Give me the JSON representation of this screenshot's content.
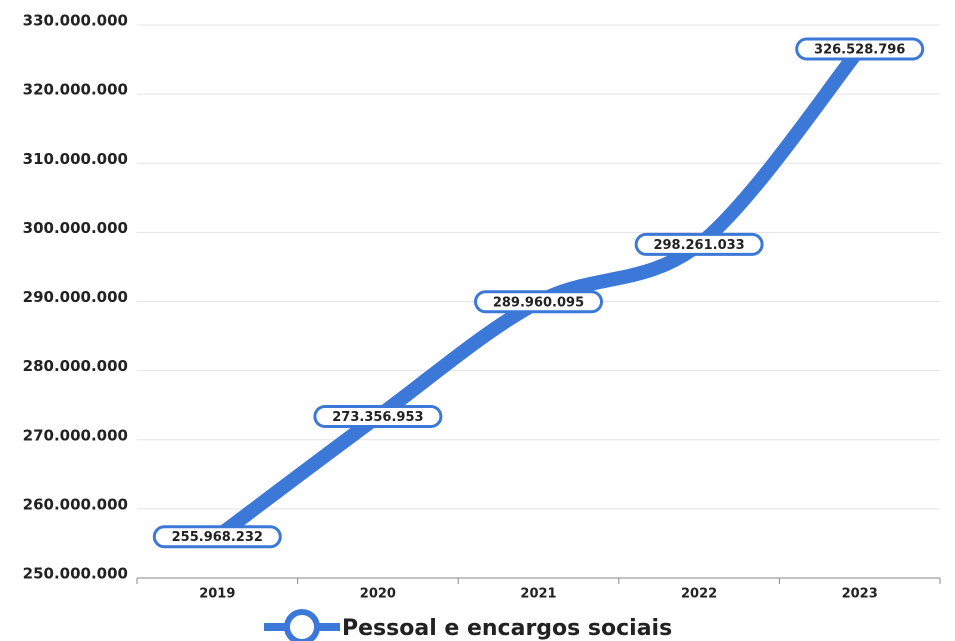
{
  "chart_data": {
    "type": "line",
    "categories": [
      "2019",
      "2020",
      "2021",
      "2022",
      "2023"
    ],
    "series": [
      {
        "name": "Pessoal e encargos sociais",
        "color": "#3b78d8",
        "values": [
          255968232,
          273356953,
          289960095,
          298261033,
          326528796
        ],
        "value_labels": [
          "255.968.232",
          "273.356.953",
          "289.960.095",
          "298.261.033",
          "326.528.796"
        ]
      }
    ],
    "ylim": [
      250000000,
      330000000
    ],
    "yticks": [
      {
        "value": 250000000,
        "label": "250.000.000"
      },
      {
        "value": 260000000,
        "label": "260.000.000"
      },
      {
        "value": 270000000,
        "label": "270.000.000"
      },
      {
        "value": 280000000,
        "label": "280.000.000"
      },
      {
        "value": 290000000,
        "label": "290.000.000"
      },
      {
        "value": 300000000,
        "label": "300.000.000"
      },
      {
        "value": 310000000,
        "label": "310.000.000"
      },
      {
        "value": 320000000,
        "label": "320.000.000"
      },
      {
        "value": 330000000,
        "label": "330.000.000"
      }
    ],
    "grid": true,
    "legend": "bottom"
  }
}
